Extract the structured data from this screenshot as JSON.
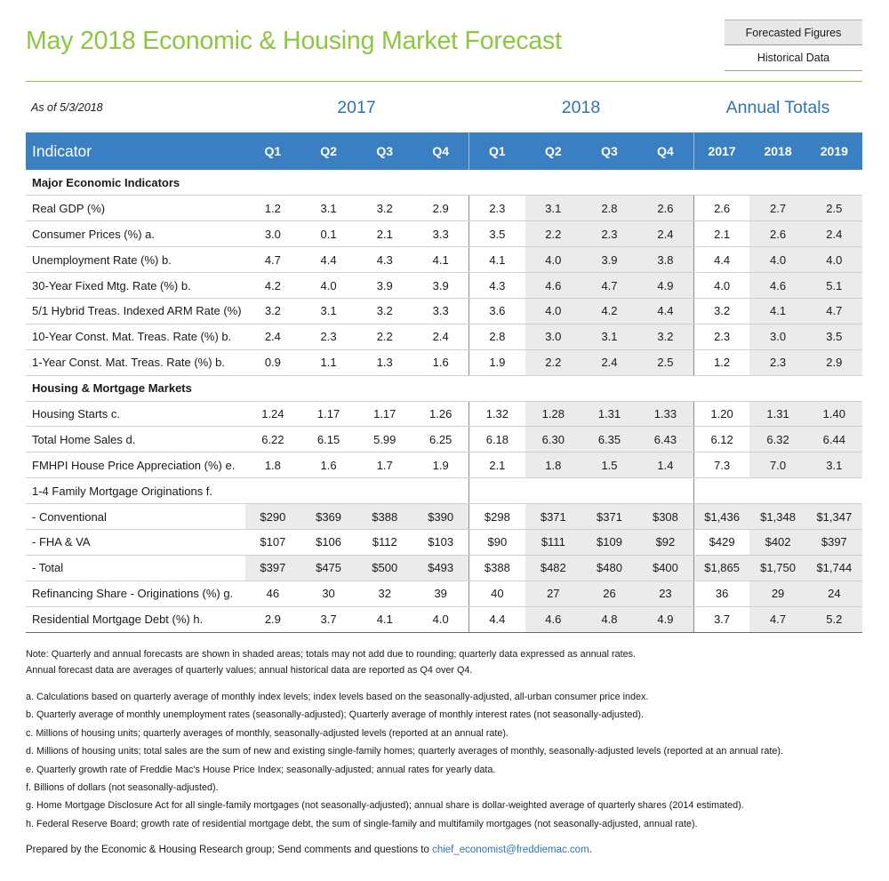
{
  "title": "May 2018 Economic & Housing Market Forecast",
  "legend": {
    "forecasted": "Forecasted Figures",
    "historical": "Historical Data"
  },
  "as_of": "As of 5/3/2018",
  "year_headers": {
    "y2017": "2017",
    "y2018": "2018",
    "annual": "Annual Totals"
  },
  "columns": [
    "Indicator",
    "Q1",
    "Q2",
    "Q3",
    "Q4",
    "Q1",
    "Q2",
    "Q3",
    "Q4",
    "2017",
    "2018",
    "2019"
  ],
  "sections": {
    "economic": "Major Economic Indicators",
    "housing": "Housing & Mortgage Markets"
  },
  "rows": [
    {
      "label": "Real GDP (%)",
      "values": [
        "1.2",
        "3.1",
        "3.2",
        "2.9",
        "2.3",
        "3.1",
        "2.8",
        "2.6",
        "2.6",
        "2.7",
        "2.5"
      ]
    },
    {
      "label": "Consumer Prices (%) a.",
      "values": [
        "3.0",
        "0.1",
        "2.1",
        "3.3",
        "3.5",
        "2.2",
        "2.3",
        "2.4",
        "2.1",
        "2.6",
        "2.4"
      ]
    },
    {
      "label": "Unemployment Rate (%) b.",
      "values": [
        "4.7",
        "4.4",
        "4.3",
        "4.1",
        "4.1",
        "4.0",
        "3.9",
        "3.8",
        "4.4",
        "4.0",
        "4.0"
      ]
    },
    {
      "label": "30-Year Fixed Mtg. Rate (%) b.",
      "values": [
        "4.2",
        "4.0",
        "3.9",
        "3.9",
        "4.3",
        "4.6",
        "4.7",
        "4.9",
        "4.0",
        "4.6",
        "5.1"
      ]
    },
    {
      "label": "5/1 Hybrid Treas. Indexed ARM Rate (%) b.",
      "values": [
        "3.2",
        "3.1",
        "3.2",
        "3.3",
        "3.6",
        "4.0",
        "4.2",
        "4.4",
        "3.2",
        "4.1",
        "4.7"
      ]
    },
    {
      "label": "10-Year Const. Mat. Treas. Rate (%) b.",
      "values": [
        "2.4",
        "2.3",
        "2.2",
        "2.4",
        "2.8",
        "3.0",
        "3.1",
        "3.2",
        "2.3",
        "3.0",
        "3.5"
      ]
    },
    {
      "label": "1-Year Const. Mat. Treas. Rate (%) b.",
      "values": [
        "0.9",
        "1.1",
        "1.3",
        "1.6",
        "1.9",
        "2.2",
        "2.4",
        "2.5",
        "1.2",
        "2.3",
        "2.9"
      ]
    },
    {
      "label": "Housing Starts c.",
      "values": [
        "1.24",
        "1.17",
        "1.17",
        "1.26",
        "1.32",
        "1.28",
        "1.31",
        "1.33",
        "1.20",
        "1.31",
        "1.40"
      ]
    },
    {
      "label": "Total Home Sales d.",
      "values": [
        "6.22",
        "6.15",
        "5.99",
        "6.25",
        "6.18",
        "6.30",
        "6.35",
        "6.43",
        "6.12",
        "6.32",
        "6.44"
      ]
    },
    {
      "label": "FMHPI House Price Appreciation (%) e.",
      "values": [
        "1.8",
        "1.6",
        "1.7",
        "1.9",
        "2.1",
        "1.8",
        "1.5",
        "1.4",
        "7.3",
        "7.0",
        "3.1"
      ]
    },
    {
      "label": "1-4 Family Mortgage Originations f.",
      "values": [
        "",
        "",
        "",
        "",
        "",
        "",
        "",
        "",
        "",
        "",
        ""
      ]
    },
    {
      "label": " - Conventional",
      "values": [
        "$290",
        "$369",
        "$388",
        "$390",
        "$298",
        "$371",
        "$371",
        "$308",
        "$1,436",
        "$1,348",
        "$1,347"
      ]
    },
    {
      "label": " - FHA & VA",
      "values": [
        "$107",
        "$106",
        "$112",
        "$103",
        "$90",
        "$111",
        "$109",
        "$92",
        "$429",
        "$402",
        "$397"
      ]
    },
    {
      "label": " - Total",
      "values": [
        "$397",
        "$475",
        "$500",
        "$493",
        "$388",
        "$482",
        "$480",
        "$400",
        "$1,865",
        "$1,750",
        "$1,744"
      ]
    },
    {
      "label": "Refinancing Share - Originations (%) g.",
      "values": [
        "46",
        "30",
        "32",
        "39",
        "40",
        "27",
        "26",
        "23",
        "36",
        "29",
        "24"
      ]
    },
    {
      "label": "Residential Mortgage Debt (%) h.",
      "values": [
        "2.9",
        "3.7",
        "4.1",
        "4.0",
        "4.4",
        "4.6",
        "4.8",
        "4.9",
        "3.7",
        "4.7",
        "5.2"
      ]
    }
  ],
  "notes": [
    "Note: Quarterly and annual forecasts are shown in shaded areas; totals may not add due to rounding; quarterly data expressed as annual rates.",
    "Annual forecast data are averages of quarterly values; annual historical data are reported as Q4 over Q4."
  ],
  "footnotes": [
    "a. Calculations based on quarterly average of monthly index levels; index levels based on the seasonally-adjusted, all-urban consumer price index.",
    "b. Quarterly average of monthly unemployment rates (seasonally-adjusted); Quarterly average of monthly interest rates (not seasonally-adjusted).",
    "c. Millions of housing units; quarterly averages of monthly, seasonally-adjusted levels (reported at an annual rate).",
    "d. Millions of housing units; total sales are the sum of new and existing single-family homes; quarterly averages of monthly, seasonally-adjusted levels (reported at an annual rate).",
    "e. Quarterly growth rate of Freddie Mac's House Price Index; seasonally-adjusted; annual rates for yearly data.",
    "f. Billions of dollars (not seasonally-adjusted).",
    "g. Home Mortgage Disclosure Act for all single-family mortgages (not seasonally-adjusted); annual share is dollar-weighted average of quarterly shares (2014 estimated).",
    "h. Federal Reserve Board; growth rate of residential mortgage debt, the sum of single-family and multifamily mortgages (not seasonally-adjusted, annual rate)."
  ],
  "prepared": {
    "text": "Prepared by the Economic & Housing Research group; Send comments and questions to ",
    "email": "chief_economist@freddiemac.com",
    "end": "."
  }
}
